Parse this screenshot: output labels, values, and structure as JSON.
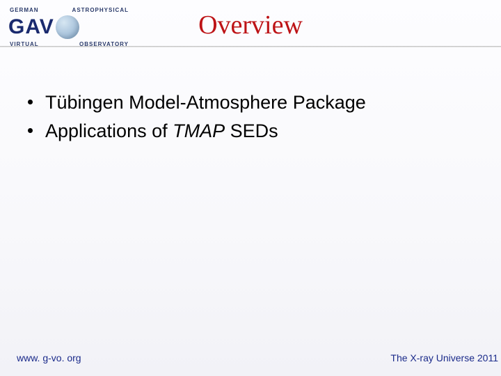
{
  "logo": {
    "top_left": "GERMAN",
    "top_right": "ASTROPHYSICAL",
    "main": "GAV",
    "bot_left": "VIRTUAL",
    "bot_right": "OBSERVATORY"
  },
  "title": "Overview",
  "bullets": [
    {
      "text": "Tübingen Model-Atmosphere Package"
    },
    {
      "prefix": "Applications of ",
      "italic": "TMAP",
      "suffix": " SEDs"
    }
  ],
  "footer": {
    "left": "www. g-vo. org",
    "right": "The X-ray Universe 2011"
  },
  "colors": {
    "title": "#bd1316",
    "footer": "#1a2a8a",
    "logo_text": "#1a2a6e"
  }
}
